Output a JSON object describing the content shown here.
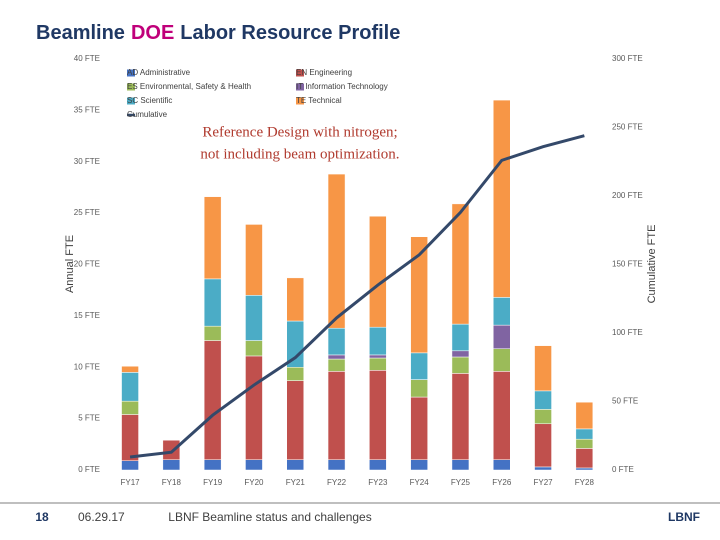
{
  "chart_data": {
    "type": "bar",
    "stacked": true,
    "title": [
      "Beamline",
      "DOE",
      "Labor Resource Profile"
    ],
    "annotation": [
      "Reference Design with nitrogen;",
      "not including beam optimization."
    ],
    "y_label": "Annual FTE",
    "y2_label": "Cumulative FTE",
    "categories": [
      "FY17",
      "FY18",
      "FY19",
      "FY20",
      "FY21",
      "FY22",
      "FY23",
      "FY24",
      "FY25",
      "FY26",
      "FY27",
      "FY28"
    ],
    "series": [
      {
        "name": "AD Administrative",
        "color": "#4472c4",
        "values": [
          0.9,
          1.0,
          1.0,
          1.0,
          1.0,
          1.0,
          1.0,
          1.0,
          1.0,
          1.0,
          0.3,
          0.2
        ]
      },
      {
        "name": "EN Engineering",
        "color": "#c0504d",
        "values": [
          4.5,
          1.9,
          11.6,
          10.1,
          7.7,
          8.6,
          8.7,
          6.1,
          8.4,
          8.6,
          4.2,
          1.9
        ]
      },
      {
        "name": "ES Environmental, Safety & Health",
        "color": "#9bbb59",
        "values": [
          1.3,
          0,
          1.4,
          1.5,
          1.3,
          1.2,
          1.2,
          1.7,
          1.6,
          2.2,
          1.4,
          0.9
        ]
      },
      {
        "name": "IT Information Technology",
        "color": "#8064a2",
        "values": [
          0,
          0,
          0,
          0,
          0,
          0.4,
          0.3,
          0,
          0.6,
          2.3,
          0,
          0
        ]
      },
      {
        "name": "SC Scientific",
        "color": "#4bacc6",
        "values": [
          2.8,
          0,
          4.6,
          4.4,
          4.5,
          2.6,
          2.7,
          2.6,
          2.6,
          2.7,
          1.8,
          1.0
        ]
      },
      {
        "name": "TE Technical",
        "color": "#f79646",
        "values": [
          0.6,
          0,
          8.0,
          6.9,
          4.2,
          15.0,
          10.8,
          11.3,
          11.7,
          19.2,
          4.4,
          2.6
        ]
      },
      {
        "name": "Cumulative",
        "type": "line",
        "axis": "y2",
        "color": "#34496a",
        "values": [
          9.5,
          13,
          40,
          62,
          82,
          111,
          135,
          157,
          188,
          226,
          236,
          244
        ]
      }
    ],
    "ylim": [
      0,
      40
    ],
    "yticks": [
      {
        "value": 0,
        "label": "0 FTE"
      },
      {
        "value": 5,
        "label": "5 FTE"
      },
      {
        "value": 10,
        "label": "10 FTE"
      },
      {
        "value": 15,
        "label": "15 FTE"
      },
      {
        "value": 20,
        "label": "20 FTE"
      },
      {
        "value": 25,
        "label": "25 FTE"
      },
      {
        "value": 30,
        "label": "30 FTE"
      },
      {
        "value": 35,
        "label": "35 FTE"
      },
      {
        "value": 40,
        "label": "40 FTE"
      }
    ],
    "y2lim": [
      0,
      300
    ],
    "y2ticks": [
      {
        "value": 0,
        "label": "0 FTE"
      },
      {
        "value": 50,
        "label": "50 FTE"
      },
      {
        "value": 100,
        "label": "100 FTE"
      },
      {
        "value": 150,
        "label": "150 FTE"
      },
      {
        "value": 200,
        "label": "200 FTE"
      },
      {
        "value": 250,
        "label": "250 FTE"
      },
      {
        "value": 300,
        "label": "300 FTE"
      }
    ],
    "grid": false
  },
  "footer": {
    "page": "18",
    "date": "06.29.17",
    "subject": "LBNF Beamline status and challenges",
    "logo": "LBNF"
  }
}
